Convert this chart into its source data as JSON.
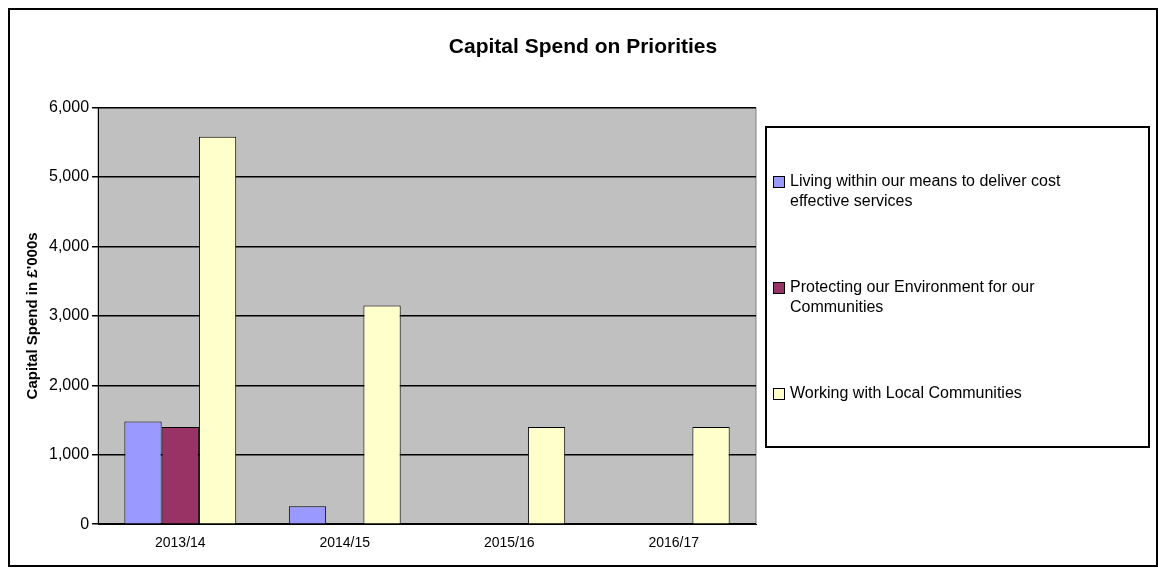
{
  "chart_data": {
    "type": "bar",
    "title": "Capital Spend on Priorities",
    "ylabel": "Capital Spend in £'000s",
    "categories": [
      "2013/14",
      "2014/15",
      "2015/16",
      "2016/17"
    ],
    "series": [
      {
        "name": "Living within our means to deliver cost effective services",
        "color": "#9999ff",
        "values": [
          1480,
          260,
          0,
          0
        ]
      },
      {
        "name": "Protecting our Environment for our Communities",
        "color": "#993366",
        "values": [
          1400,
          0,
          0,
          0
        ]
      },
      {
        "name": "Working with Local Communities",
        "color": "#ffffcc",
        "values": [
          5580,
          3150,
          1400,
          1400
        ]
      }
    ],
    "ylim": [
      0,
      6000
    ],
    "yticks": [
      0,
      {
        "value": 1000,
        "label": "1,000"
      },
      {
        "value": 2000,
        "label": "2,000"
      },
      {
        "value": 3000,
        "label": "3,000"
      },
      {
        "value": 4000,
        "label": "4,000"
      },
      {
        "value": 5000,
        "label": "5,000"
      },
      {
        "value": 6000,
        "label": "6,000"
      }
    ],
    "grid": "y",
    "legend": "right"
  }
}
